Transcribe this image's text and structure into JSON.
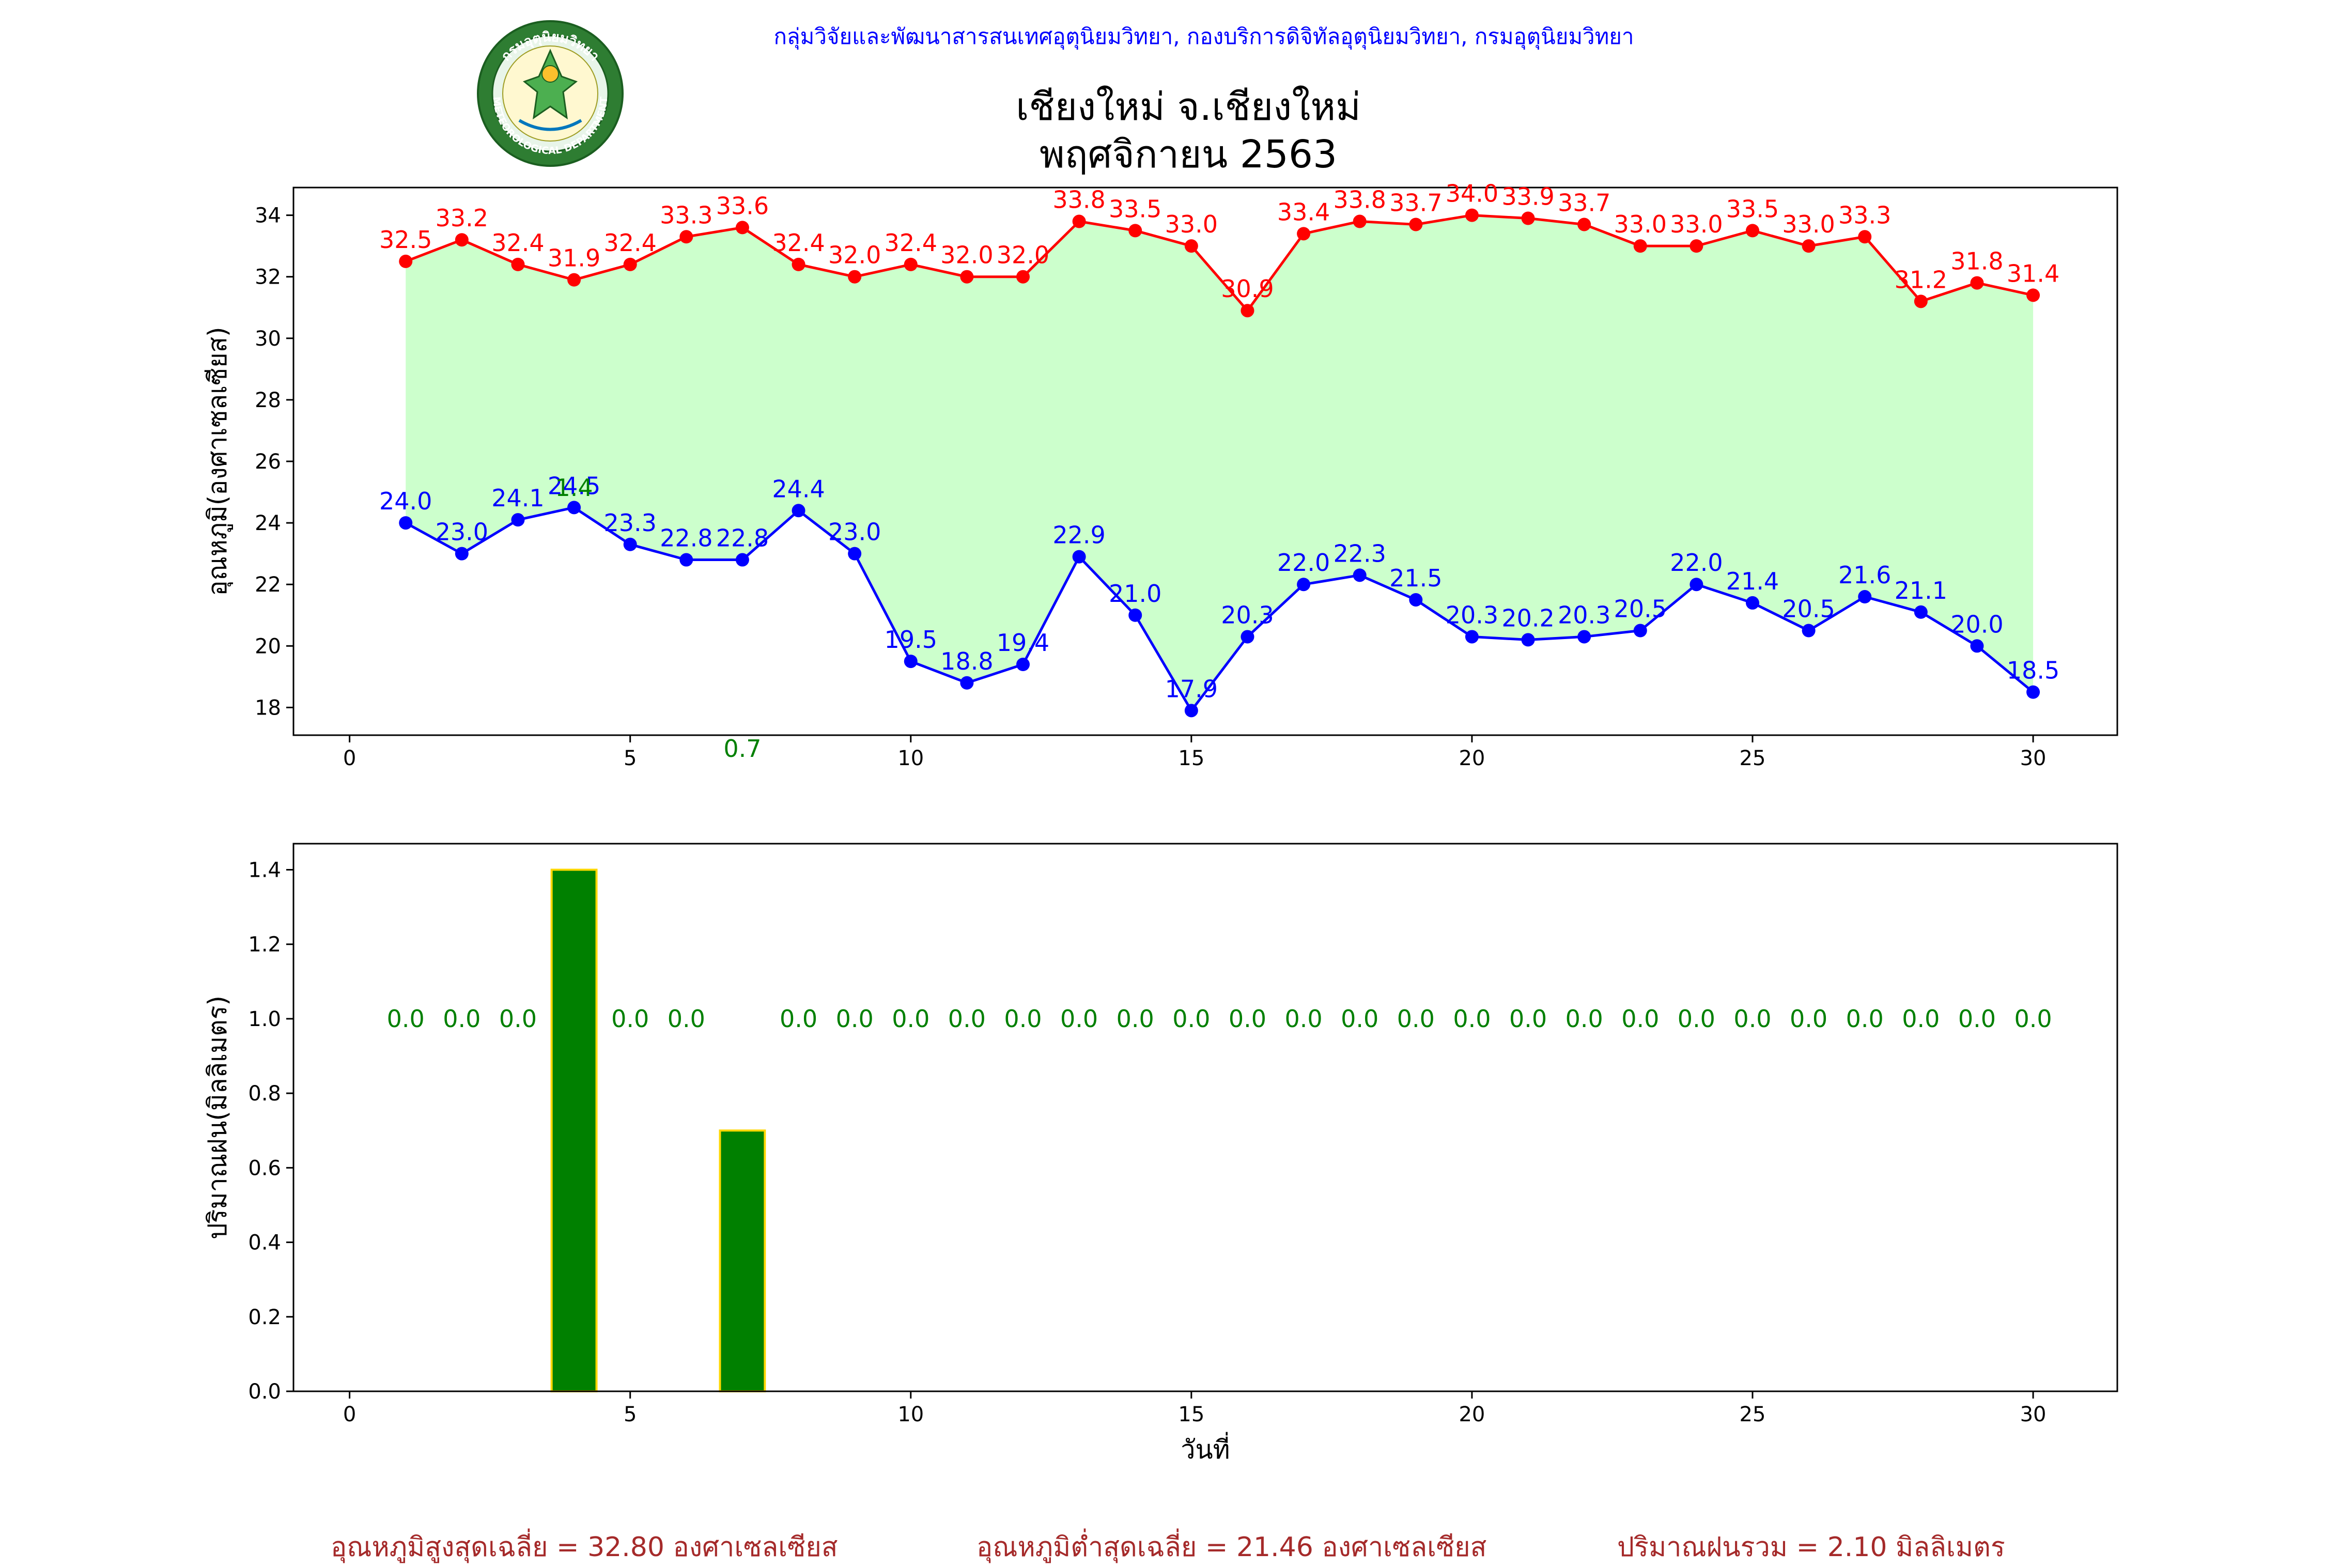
{
  "header": {
    "agency": "กลุ่มวิจัยและพัฒนาสารสนเทศอุตุนิยมวิทยา, กองบริการดิจิทัลอุตุนิยมวิทยา, กรมอุตุนิยมวิทยา",
    "title_line1": "เชียงใหม่ จ.เชียงใหม่",
    "title_line2": "พฤศจิกายน 2563",
    "logo_text_top": "กรมอุตุนิยมวิทยา",
    "logo_text_bottom": "METEOROLOGICAL DEPARTMENT"
  },
  "summary": {
    "max_avg": "อุณหภูมิสูงสุดเฉลี่ย = 32.80 องศาเซลเซียส",
    "min_avg": "อุณหภูมิต่ำสุดเฉลี่ย = 21.46 องศาเซลเซียส",
    "rain_total": "ปริมาณฝนรวม = 2.10 มิลลิเมตร"
  },
  "colors": {
    "max_line": "#ff0000",
    "min_line": "#0000ff",
    "fill": "#ccffcc",
    "rain_bar": "#008000",
    "rain_edge": "#ffd700",
    "rain_label": "#008000",
    "summary": "#a52a2a",
    "agency": "#0000ff"
  },
  "chart_data": [
    {
      "type": "line",
      "ylabel": "อุณหภูมิ(องศาเซลเซียส)",
      "xlim": [
        -1,
        31.5
      ],
      "ylim": [
        17.1,
        34.9
      ],
      "xticks": [
        0,
        5,
        10,
        15,
        20,
        25,
        30
      ],
      "yticks": [
        18,
        20,
        22,
        24,
        26,
        28,
        30,
        32,
        34
      ],
      "x": [
        1,
        2,
        3,
        4,
        5,
        6,
        7,
        8,
        9,
        10,
        11,
        12,
        13,
        14,
        15,
        16,
        17,
        18,
        19,
        20,
        21,
        22,
        23,
        24,
        25,
        26,
        27,
        28,
        29,
        30
      ],
      "series": [
        {
          "name": "",
          "role": "max",
          "values": [
            32.5,
            33.2,
            32.4,
            31.9,
            32.4,
            33.3,
            33.6,
            32.4,
            32.0,
            32.4,
            32.0,
            32.0,
            33.8,
            33.5,
            33.0,
            30.9,
            33.4,
            33.8,
            33.7,
            34.0,
            33.9,
            33.7,
            33.0,
            33.0,
            33.5,
            33.0,
            33.3,
            31.2,
            31.8,
            31.4
          ]
        },
        {
          "name": "",
          "role": "min",
          "values": [
            24.0,
            23.0,
            24.1,
            24.5,
            23.3,
            22.8,
            22.8,
            24.4,
            23.0,
            19.5,
            18.8,
            19.4,
            22.9,
            21.0,
            17.9,
            20.3,
            22.0,
            22.3,
            21.5,
            20.3,
            20.2,
            20.3,
            20.5,
            22.0,
            21.4,
            20.5,
            21.6,
            21.1,
            20.0,
            18.5
          ]
        }
      ],
      "rain_annotations": [
        {
          "x": 4,
          "label": "1.4"
        },
        {
          "x": 7,
          "label": "0.7"
        }
      ]
    },
    {
      "type": "bar",
      "xlabel": "วันที่",
      "ylabel": "ปริมาณฝน(มิลลิเมตร)",
      "xlim": [
        -1,
        31.5
      ],
      "ylim": [
        0,
        1.47
      ],
      "xticks": [
        0,
        5,
        10,
        15,
        20,
        25,
        30
      ],
      "yticks": [
        0.0,
        0.2,
        0.4,
        0.6,
        0.8,
        1.0,
        1.2,
        1.4
      ],
      "x": [
        1,
        2,
        3,
        4,
        5,
        6,
        7,
        8,
        9,
        10,
        11,
        12,
        13,
        14,
        15,
        16,
        17,
        18,
        19,
        20,
        21,
        22,
        23,
        24,
        25,
        26,
        27,
        28,
        29,
        30
      ],
      "values": [
        0.0,
        0.0,
        0.0,
        1.4,
        0.0,
        0.0,
        0.7,
        0.0,
        0.0,
        0.0,
        0.0,
        0.0,
        0.0,
        0.0,
        0.0,
        0.0,
        0.0,
        0.0,
        0.0,
        0.0,
        0.0,
        0.0,
        0.0,
        0.0,
        0.0,
        0.0,
        0.0,
        0.0,
        0.0,
        0.0
      ],
      "labels": [
        "0.0",
        "0.0",
        "0.0",
        "",
        "0.0",
        "0.0",
        "",
        "0.0",
        "0.0",
        "0.0",
        "0.0",
        "0.0",
        "0.0",
        "0.0",
        "0.0",
        "0.0",
        "0.0",
        "0.0",
        "0.0",
        "0.0",
        "0.0",
        "0.0",
        "0.0",
        "0.0",
        "0.0",
        "0.0",
        "0.0",
        "0.0",
        "0.0",
        "0.0"
      ]
    }
  ]
}
